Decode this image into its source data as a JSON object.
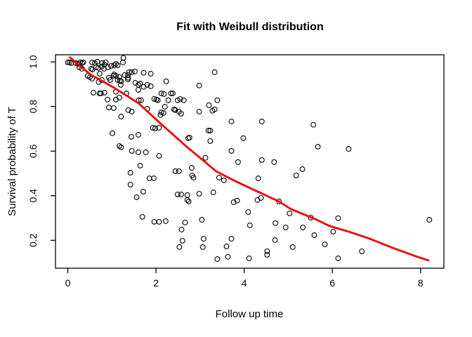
{
  "chart_data": {
    "type": "scatter",
    "title": "Fit with Weibull distribution",
    "xlabel": "Follow up time",
    "ylabel": "Survival probability of T",
    "x_ticks": [
      0,
      2,
      4,
      6,
      8
    ],
    "x_tick_labels": [
      "0",
      "2",
      "4",
      "6",
      "8"
    ],
    "y_ticks": [
      0.2,
      0.4,
      0.6,
      0.8,
      1.0
    ],
    "y_tick_labels": [
      "0.2",
      "0.4",
      "0.6",
      "0.8",
      "1.0"
    ],
    "x_range": [
      -0.28,
      8.53
    ],
    "y_range": [
      0.075,
      1.032
    ],
    "grid": "off",
    "legend": "none",
    "colors": {
      "background": "#ffffff",
      "point_stroke": "#000000",
      "fit_line": "#ee0000",
      "axis": "#000000"
    },
    "series": [
      {
        "name": "observed-survival-points",
        "type": "scatter"
      },
      {
        "name": "weibull-fit-curve",
        "type": "line"
      }
    ],
    "points": [
      [
        0.0,
        0.998
      ],
      [
        0.04,
        0.998
      ],
      [
        0.08,
        0.995
      ],
      [
        0.18,
        0.995
      ],
      [
        0.23,
        0.991
      ],
      [
        0.28,
        0.998
      ],
      [
        0.32,
        0.995
      ],
      [
        0.35,
        0.998
      ],
      [
        0.55,
        0.998
      ],
      [
        0.61,
        0.995
      ],
      [
        0.67,
        1.001
      ],
      [
        0.78,
        0.995
      ],
      [
        0.83,
        0.988
      ],
      [
        0.86,
        0.998
      ],
      [
        1.05,
        0.985
      ],
      [
        1.09,
        0.991
      ],
      [
        1.13,
        0.985
      ],
      [
        1.25,
        0.998
      ],
      [
        1.26,
        1.018
      ],
      [
        0.26,
        0.976
      ],
      [
        0.32,
        0.969
      ],
      [
        0.53,
        0.969
      ],
      [
        0.56,
        0.966
      ],
      [
        0.64,
        0.976
      ],
      [
        0.69,
        0.973
      ],
      [
        0.77,
        0.979
      ],
      [
        0.82,
        0.969
      ],
      [
        0.91,
        0.976
      ],
      [
        0.98,
        0.982
      ],
      [
        0.72,
        0.947
      ],
      [
        1.05,
        0.944
      ],
      [
        1.36,
        0.941
      ],
      [
        1.39,
        0.954
      ],
      [
        1.45,
        0.954
      ],
      [
        1.72,
        0.951
      ],
      [
        1.88,
        0.947
      ],
      [
        3.33,
        0.954
      ],
      [
        1.52,
        0.957
      ],
      [
        0.45,
        0.938
      ],
      [
        0.5,
        0.932
      ],
      [
        0.55,
        0.925
      ],
      [
        0.93,
        0.929
      ],
      [
        0.96,
        0.919
      ],
      [
        1.04,
        0.938
      ],
      [
        1.09,
        0.938
      ],
      [
        1.17,
        0.932
      ],
      [
        1.21,
        0.913
      ],
      [
        1.29,
        0.941
      ],
      [
        1.13,
        0.919
      ],
      [
        1.18,
        0.916
      ],
      [
        1.36,
        0.922
      ],
      [
        0.7,
        0.91
      ],
      [
        0.77,
        0.919
      ],
      [
        1.53,
        0.906
      ],
      [
        1.6,
        0.897
      ],
      [
        1.64,
        0.903
      ],
      [
        1.8,
        0.897
      ],
      [
        1.88,
        0.891
      ],
      [
        2.23,
        0.913
      ],
      [
        2.98,
        0.894
      ],
      [
        1.37,
        0.929
      ],
      [
        1.2,
        0.897
      ],
      [
        1.6,
        0.875
      ],
      [
        1.72,
        0.888
      ],
      [
        0.58,
        0.862
      ],
      [
        0.72,
        0.859
      ],
      [
        0.75,
        0.859
      ],
      [
        0.83,
        0.862
      ],
      [
        0.9,
        0.831
      ],
      [
        1.09,
        0.866
      ],
      [
        1.09,
        0.831
      ],
      [
        1.17,
        0.84
      ],
      [
        1.33,
        0.859
      ],
      [
        1.61,
        0.828
      ],
      [
        1.66,
        0.828
      ],
      [
        2.01,
        0.831
      ],
      [
        2.04,
        0.828
      ],
      [
        2.12,
        0.859
      ],
      [
        2.18,
        0.856
      ],
      [
        2.34,
        0.859
      ],
      [
        2.38,
        0.859
      ],
      [
        2.55,
        0.834
      ],
      [
        2.63,
        0.828
      ],
      [
        3.39,
        0.828
      ],
      [
        1.96,
        0.834
      ],
      [
        2.28,
        0.828
      ],
      [
        2.49,
        0.828
      ],
      [
        0.93,
        0.796
      ],
      [
        1.04,
        0.793
      ],
      [
        1.21,
        0.755
      ],
      [
        1.37,
        0.784
      ],
      [
        1.45,
        0.777
      ],
      [
        1.8,
        0.79
      ],
      [
        2.12,
        0.774
      ],
      [
        2.17,
        0.771
      ],
      [
        2.2,
        0.799
      ],
      [
        2.44,
        0.784
      ],
      [
        2.57,
        0.768
      ],
      [
        3.2,
        0.806
      ],
      [
        2.98,
        0.777
      ],
      [
        3.28,
        0.781
      ],
      [
        3.33,
        0.787
      ],
      [
        2.1,
        0.762
      ],
      [
        2.41,
        0.787
      ],
      [
        2.52,
        0.777
      ],
      [
        1.01,
        0.68
      ],
      [
        1.44,
        0.664
      ],
      [
        1.6,
        0.673
      ],
      [
        1.93,
        0.705
      ],
      [
        1.98,
        0.702
      ],
      [
        2.07,
        0.705
      ],
      [
        2.73,
        0.658
      ],
      [
        2.76,
        0.661
      ],
      [
        3.19,
        0.692
      ],
      [
        3.23,
        0.692
      ],
      [
        3.23,
        0.645
      ],
      [
        3.71,
        0.733
      ],
      [
        4.4,
        0.733
      ],
      [
        5.57,
        0.718
      ],
      [
        3.98,
        0.658
      ],
      [
        1.17,
        0.623
      ],
      [
        1.21,
        0.617
      ],
      [
        1.45,
        0.601
      ],
      [
        1.6,
        0.595
      ],
      [
        1.77,
        0.595
      ],
      [
        2.07,
        0.579
      ],
      [
        3.71,
        0.601
      ],
      [
        3.12,
        0.57
      ],
      [
        4.4,
        0.56
      ],
      [
        5.67,
        0.62
      ],
      [
        6.37,
        0.61
      ],
      [
        3.86,
        0.551
      ],
      [
        4.68,
        0.551
      ],
      [
        1.42,
        0.503
      ],
      [
        1.64,
        0.535
      ],
      [
        1.42,
        0.45
      ],
      [
        1.85,
        0.478
      ],
      [
        1.95,
        0.478
      ],
      [
        1.71,
        0.418
      ],
      [
        1.56,
        0.393
      ],
      [
        2.44,
        0.51
      ],
      [
        2.52,
        0.51
      ],
      [
        2.81,
        0.525
      ],
      [
        5.32,
        0.519
      ],
      [
        5.18,
        0.491
      ],
      [
        2.82,
        0.491
      ],
      [
        2.85,
        0.481
      ],
      [
        3.43,
        0.481
      ],
      [
        3.54,
        0.469
      ],
      [
        4.32,
        0.478
      ],
      [
        2.49,
        0.406
      ],
      [
        2.57,
        0.406
      ],
      [
        2.71,
        0.403
      ],
      [
        2.74,
        0.374
      ],
      [
        2.98,
        0.409
      ],
      [
        3.3,
        0.415
      ],
      [
        2.71,
        0.381
      ],
      [
        3.76,
        0.371
      ],
      [
        3.84,
        0.378
      ],
      [
        4.3,
        0.381
      ],
      [
        4.38,
        0.39
      ],
      [
        4.79,
        0.374
      ],
      [
        1.69,
        0.305
      ],
      [
        1.96,
        0.283
      ],
      [
        2.07,
        0.283
      ],
      [
        2.22,
        0.286
      ],
      [
        2.66,
        0.28
      ],
      [
        2.58,
        0.248
      ],
      [
        4.09,
        0.327
      ],
      [
        5.03,
        0.321
      ],
      [
        5.51,
        0.302
      ],
      [
        3.04,
        0.292
      ],
      [
        4.13,
        0.267
      ],
      [
        4.71,
        0.277
      ],
      [
        4.94,
        0.258
      ],
      [
        5.33,
        0.258
      ],
      [
        5.59,
        0.223
      ],
      [
        8.2,
        0.292
      ],
      [
        6.13,
        0.299
      ],
      [
        6.02,
        0.239
      ],
      [
        2.6,
        0.198
      ],
      [
        2.53,
        0.17
      ],
      [
        3.08,
        0.207
      ],
      [
        3.71,
        0.207
      ],
      [
        4.7,
        0.201
      ],
      [
        3.06,
        0.17
      ],
      [
        3.6,
        0.173
      ],
      [
        5.83,
        0.182
      ],
      [
        5.1,
        0.17
      ],
      [
        6.67,
        0.151
      ],
      [
        3.39,
        0.116
      ],
      [
        4.11,
        0.119
      ],
      [
        4.52,
        0.151
      ],
      [
        4.52,
        0.135
      ],
      [
        3.63,
        0.126
      ],
      [
        6.13,
        0.119
      ]
    ],
    "fit_curve": [
      [
        0.05,
        1.02
      ],
      [
        0.29,
        0.979
      ],
      [
        0.53,
        0.941
      ],
      [
        1.05,
        0.884
      ],
      [
        1.6,
        0.815
      ],
      [
        2.12,
        0.721
      ],
      [
        2.71,
        0.617
      ],
      [
        3.0,
        0.57
      ],
      [
        3.36,
        0.51
      ],
      [
        3.79,
        0.466
      ],
      [
        4.27,
        0.422
      ],
      [
        4.79,
        0.374
      ],
      [
        5.06,
        0.34
      ],
      [
        5.65,
        0.292
      ],
      [
        5.94,
        0.264
      ],
      [
        6.42,
        0.236
      ],
      [
        6.85,
        0.207
      ],
      [
        7.37,
        0.166
      ],
      [
        7.9,
        0.128
      ],
      [
        8.18,
        0.11
      ]
    ]
  }
}
